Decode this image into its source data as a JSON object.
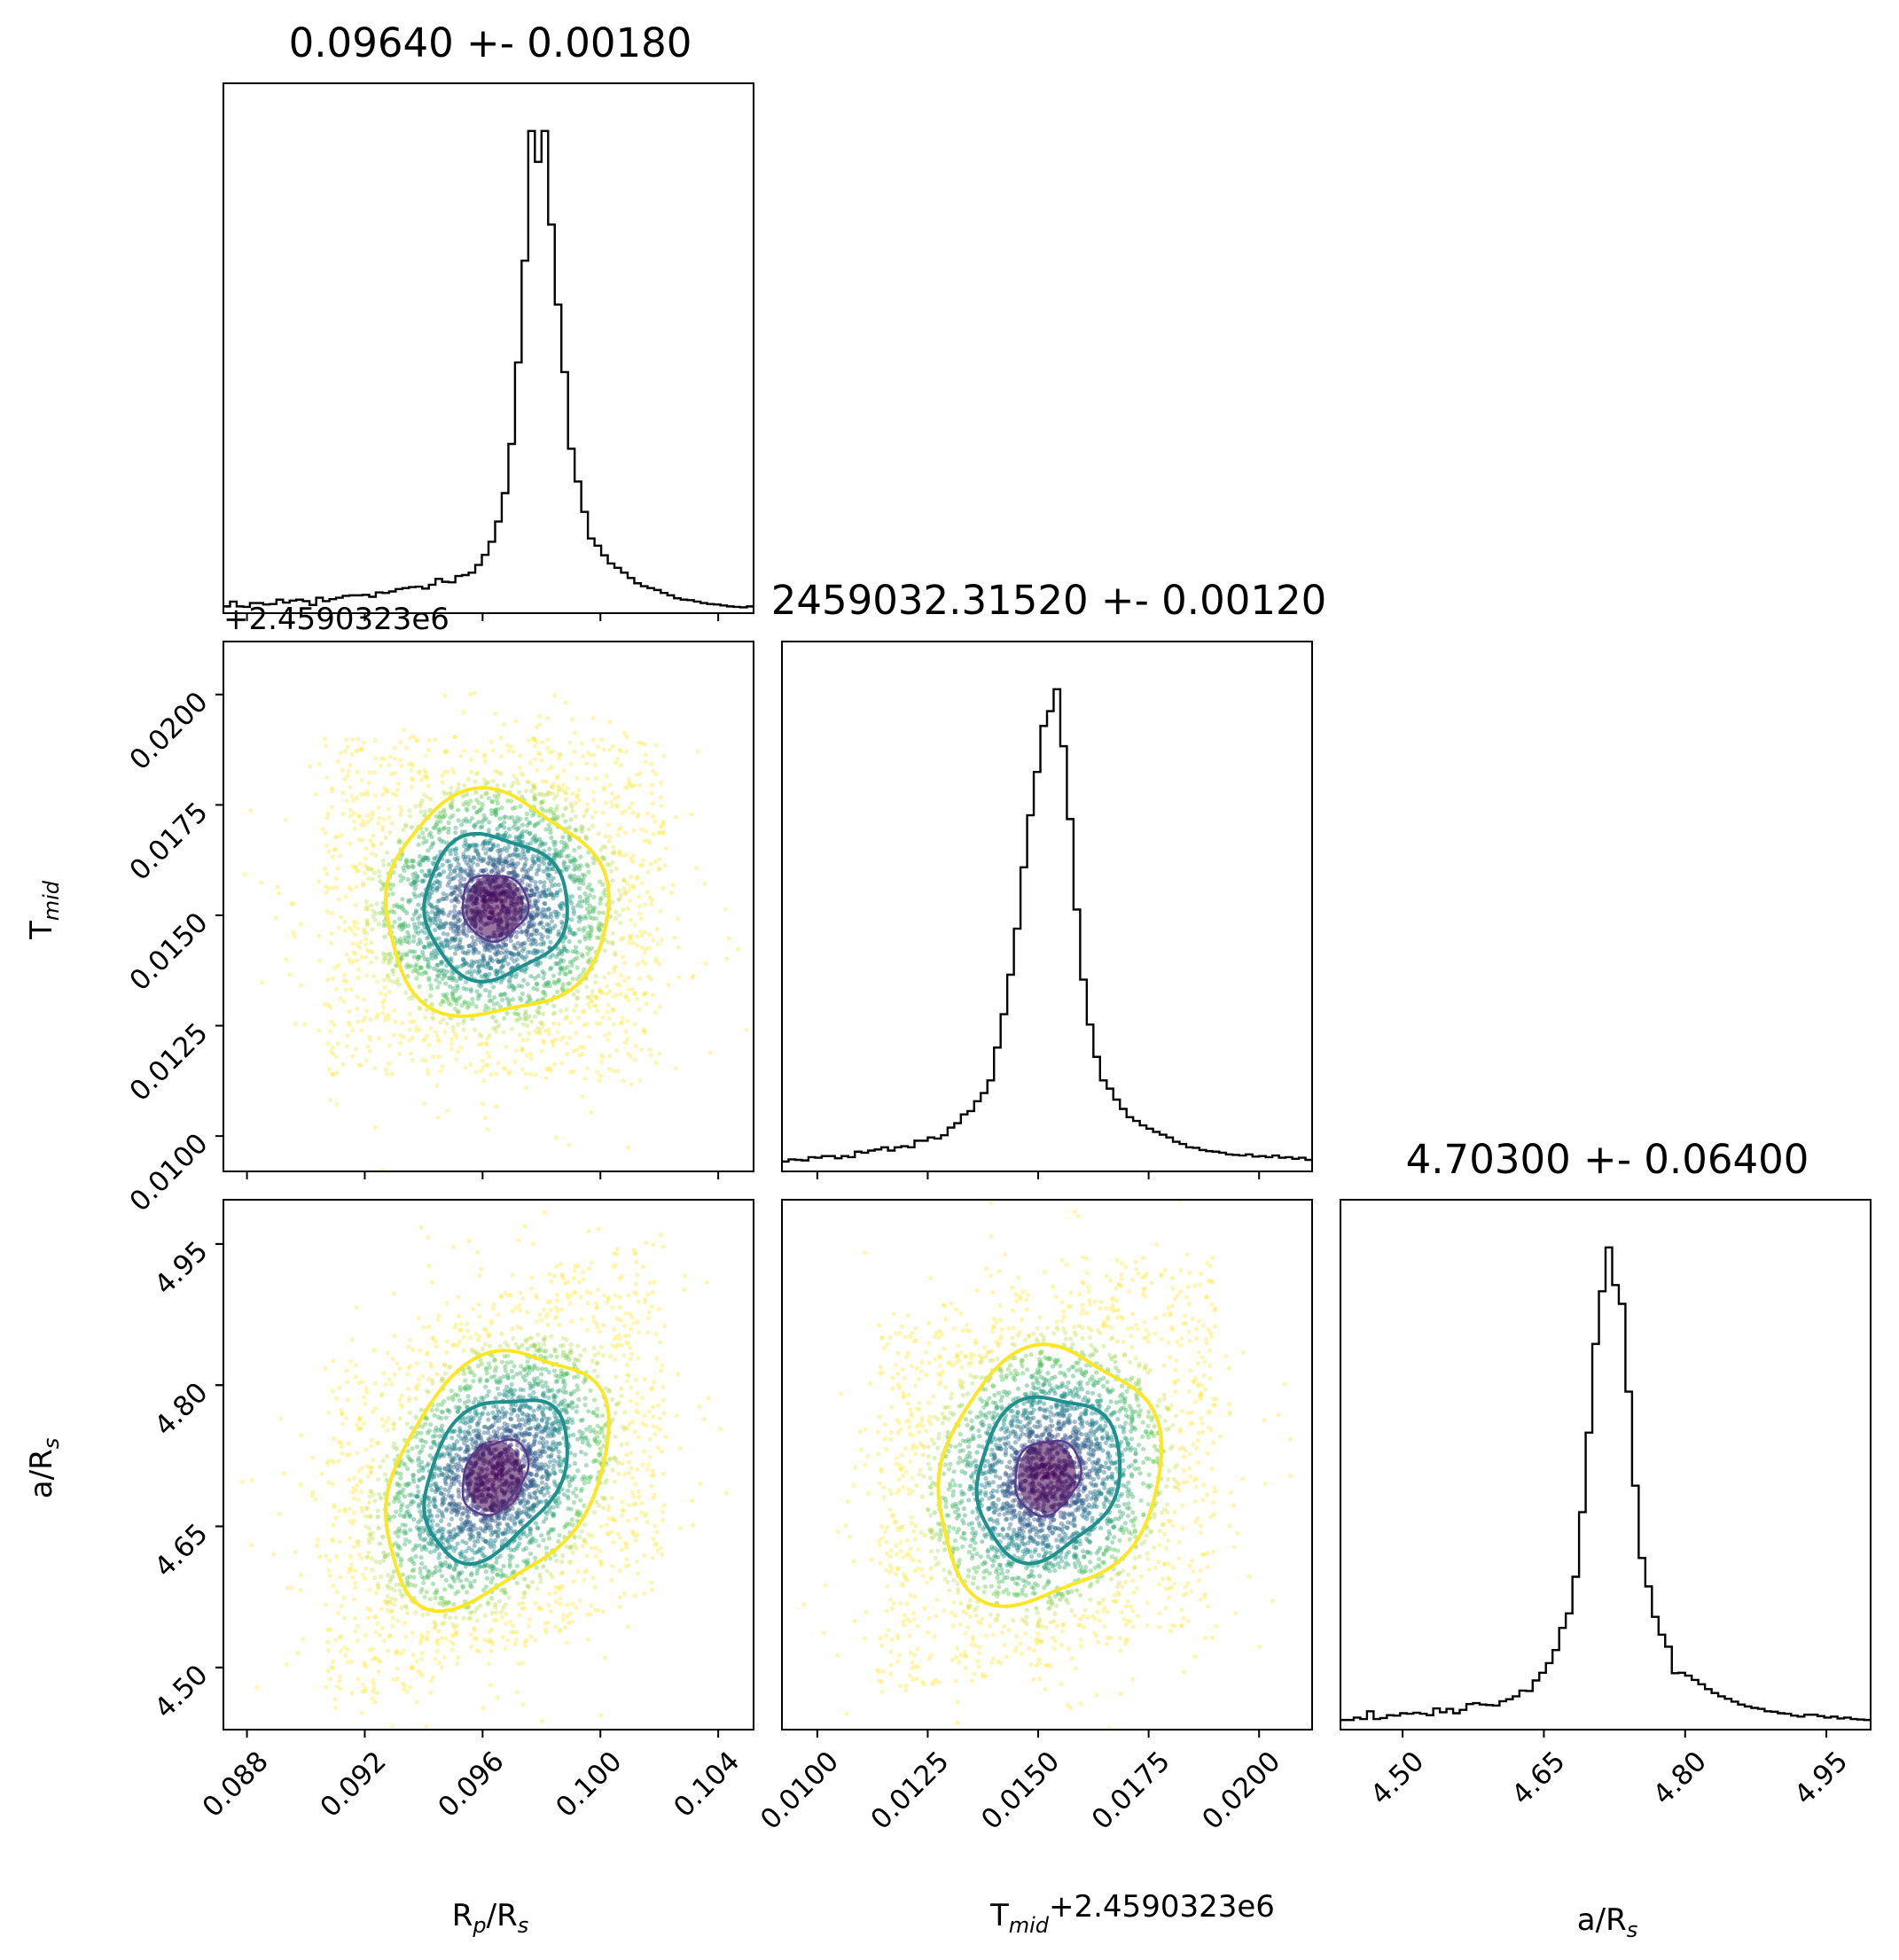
{
  "chart_data": {
    "type": "corner",
    "parameters": [
      {
        "key": "rp",
        "label": "R",
        "sub": "p",
        "label_tail": "/R",
        "sub_tail": "s",
        "range": [
          0.0872,
          0.1052
        ],
        "ticks": [
          "0.088",
          "0.092",
          "0.096",
          "0.100",
          "0.104"
        ]
      },
      {
        "key": "tmid",
        "label": "T",
        "sub": "mid",
        "label_tail": "",
        "sub_tail": "",
        "offset_text": "+2.4590323e6",
        "range": [
          0.0092,
          0.0212
        ],
        "ticks": [
          "0.0100",
          "0.0125",
          "0.0150",
          "0.0175",
          "0.0200"
        ]
      },
      {
        "key": "ars",
        "label": "a/R",
        "sub": "s",
        "label_tail": "",
        "sub_tail": "",
        "range": [
          4.434,
          4.997
        ],
        "ticks": [
          "4.50",
          "4.65",
          "4.80",
          "4.95"
        ]
      }
    ],
    "titles": [
      "0.09640 +- 0.00180",
      "2459032.31520 +- 0.00120",
      "4.70300 +- 0.06400"
    ],
    "estimates": [
      {
        "mean": 0.0964,
        "sigma": 0.0018
      },
      {
        "mean": 0.0152,
        "sigma": 0.0012
      },
      {
        "mean": 4.703,
        "sigma": 0.064
      }
    ],
    "histograms": [
      {
        "bins": 80,
        "range": [
          0.0872,
          0.1052
        ],
        "values": [
          14,
          24,
          14,
          13,
          21,
          21,
          18,
          19,
          28,
          22,
          26,
          28,
          25,
          17,
          32,
          25,
          29,
          32,
          36,
          37,
          37,
          38,
          34,
          43,
          42,
          45,
          50,
          52,
          54,
          55,
          51,
          59,
          71,
          65,
          64,
          77,
          79,
          84,
          100,
          121,
          148,
          190,
          249,
          351,
          520,
          731,
          1000,
          936,
          1000,
          806,
          640,
          500,
          341,
          273,
          210,
          155,
          140,
          120,
          103,
          94,
          84,
          73,
          62,
          56,
          52,
          48,
          42,
          37,
          31,
          28,
          27,
          24,
          21,
          19,
          18,
          16,
          14,
          13,
          12,
          14
        ]
      },
      {
        "bins": 80,
        "range": [
          0.0092,
          0.0212
        ],
        "values": [
          18,
          22,
          21,
          20,
          26,
          25,
          28,
          28,
          24,
          28,
          26,
          36,
          34,
          38,
          40,
          44,
          38,
          44,
          46,
          44,
          56,
          56,
          62,
          60,
          66,
          80,
          88,
          104,
          110,
          128,
          143,
          166,
          226,
          287,
          359,
          443,
          555,
          650,
          729,
          813,
          840,
          880,
          776,
          643,
          478,
          350,
          268,
          209,
          166,
          151,
          131,
          114,
          99,
          92,
          84,
          78,
          72,
          67,
          62,
          54,
          50,
          44,
          43,
          39,
          37,
          36,
          34,
          31,
          30,
          29,
          31,
          27,
          28,
          26,
          29,
          25,
          26,
          23,
          25,
          21
        ]
      },
      {
        "bins": 80,
        "range": [
          4.434,
          4.997
        ],
        "values": [
          20,
          20,
          25,
          22,
          38,
          22,
          24,
          30,
          29,
          34,
          33,
          35,
          33,
          30,
          44,
          36,
          43,
          34,
          41,
          53,
          55,
          52,
          51,
          50,
          59,
          63,
          69,
          81,
          80,
          102,
          118,
          138,
          165,
          211,
          241,
          317,
          451,
          616,
          800,
          909,
          1000,
          922,
          883,
          701,
          506,
          356,
          297,
          234,
          197,
          172,
          117,
          118,
          112,
          103,
          94,
          84,
          76,
          69,
          64,
          58,
          52,
          48,
          45,
          43,
          38,
          37,
          34,
          33,
          29,
          27,
          31,
          31,
          28,
          25,
          27,
          23,
          25,
          22,
          21,
          20
        ]
      }
    ],
    "scatter": {
      "points": "random draws around the estimates",
      "colormap": "viridis"
    },
    "contours": [
      {
        "x": "rp",
        "y": "tmid"
      },
      {
        "x": "rp",
        "y": "ars"
      },
      {
        "x": "tmid",
        "y": "ars"
      }
    ],
    "colors": {
      "line": "#000000",
      "outer_contour": "#fde725",
      "mid_contour": "#21908d",
      "inner_contour": "#440154"
    }
  }
}
